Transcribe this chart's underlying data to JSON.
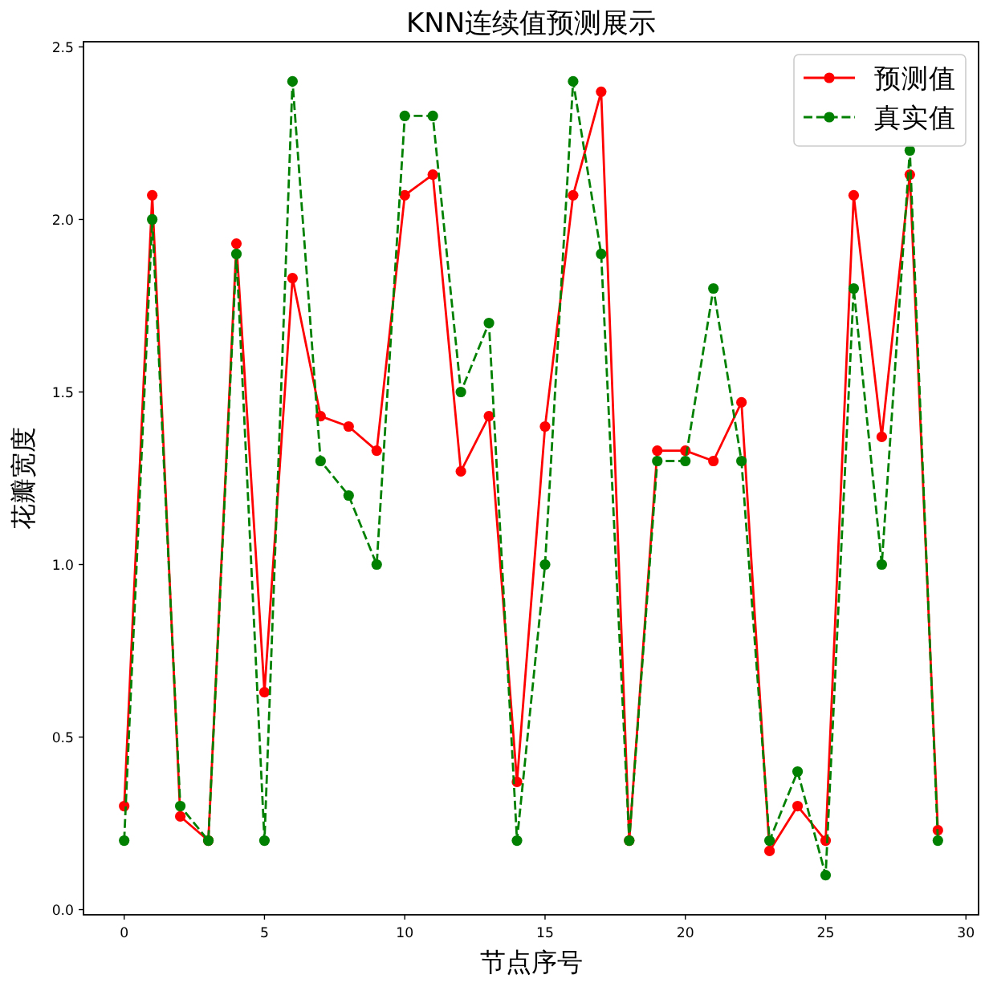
{
  "chart_data": {
    "type": "line",
    "title": "KNN连续值预测展示",
    "xlabel": "节点序号",
    "ylabel": "花瓣宽度",
    "xlim": [
      -1.45,
      30.45
    ],
    "ylim": [
      -0.015,
      2.515
    ],
    "xticks": [
      0,
      5,
      10,
      15,
      20,
      25,
      30
    ],
    "yticks": [
      {
        "value": 0,
        "label": "0.0"
      },
      0.5,
      {
        "value": 1,
        "label": "1.0"
      },
      1.5,
      {
        "value": 2,
        "label": "2.0"
      },
      2.5
    ],
    "x": [
      0,
      1,
      2,
      3,
      4,
      5,
      6,
      7,
      8,
      9,
      10,
      11,
      12,
      13,
      14,
      15,
      16,
      17,
      18,
      19,
      20,
      21,
      22,
      23,
      24,
      25,
      26,
      27,
      28,
      29
    ],
    "series": [
      {
        "name": "预测值",
        "color": "#ff0000",
        "line_style": "solid",
        "values": [
          0.3,
          2.07,
          0.27,
          0.2,
          1.93,
          0.63,
          1.83,
          1.43,
          1.4,
          1.33,
          2.07,
          2.13,
          1.27,
          1.43,
          0.37,
          1.4,
          2.07,
          2.37,
          0.2,
          1.33,
          1.33,
          1.3,
          1.47,
          0.17,
          0.3,
          0.2,
          2.07,
          1.37,
          2.13,
          0.23
        ]
      },
      {
        "name": "真实值",
        "color": "#008000",
        "line_style": "dashed",
        "values": [
          0.2,
          2.0,
          0.3,
          0.2,
          1.9,
          0.2,
          2.4,
          1.3,
          1.2,
          1.0,
          2.3,
          2.3,
          1.5,
          1.7,
          0.2,
          1.0,
          2.4,
          1.9,
          0.2,
          1.3,
          1.3,
          1.8,
          1.3,
          0.2,
          0.4,
          0.1,
          1.8,
          1.0,
          2.2,
          0.2
        ]
      }
    ],
    "marker": "circle",
    "legend": "top right"
  }
}
